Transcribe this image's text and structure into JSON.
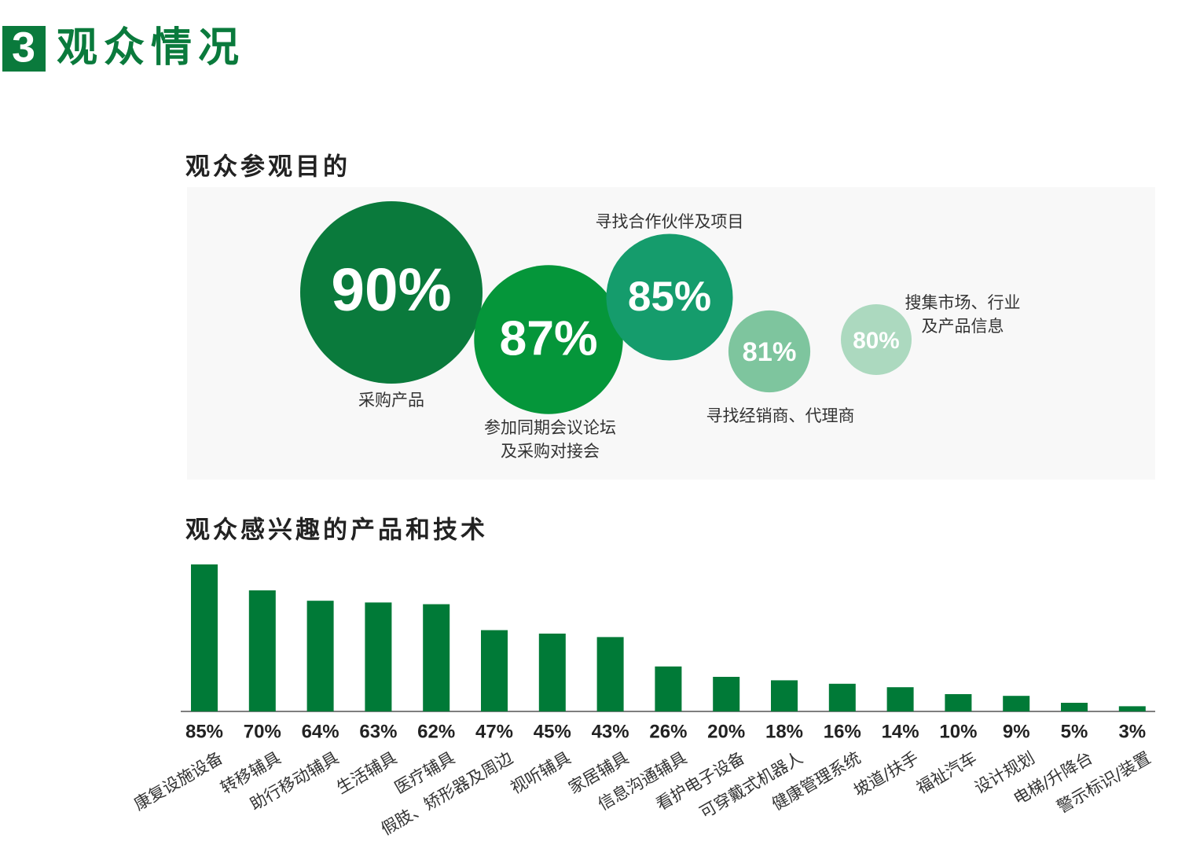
{
  "header": {
    "number": "3",
    "title": "观众情况"
  },
  "chart_data": [
    {
      "type": "bubble",
      "title": "观众参观目的",
      "categories": [
        [
          "采购产品"
        ],
        [
          "参加同期会议论坛",
          "及采购对接会"
        ],
        [
          "寻找合作伙伴及项目"
        ],
        [
          "寻找经销商、代理商"
        ],
        [
          "搜集市场、行业",
          "及产品信息"
        ]
      ],
      "values": [
        90,
        87,
        85,
        81,
        80
      ],
      "value_labels": [
        "90%",
        "87%",
        "85%",
        "81%",
        "80%"
      ],
      "colors": [
        "#0a7a3c",
        "#05963a",
        "#159c6c",
        "#7ec59e",
        "#acd9bf"
      ]
    },
    {
      "type": "bar",
      "title": "观众感兴趣的产品和技术",
      "categories": [
        "康复设施设备",
        "转移辅具",
        "助行移动辅具",
        "生活辅具",
        "医疗辅具",
        "假肢、矫形器及周边",
        "视听辅具",
        "家居辅具",
        "信息沟通辅具",
        "看护电子设备",
        "可穿戴式机器人",
        "健康管理系统",
        "坡道/扶手",
        "福祉汽车",
        "设计规划",
        "电梯/升降台",
        "警示标识/装置"
      ],
      "values": [
        85,
        70,
        64,
        63,
        62,
        47,
        45,
        43,
        26,
        20,
        18,
        16,
        14,
        10,
        9,
        5,
        3
      ],
      "value_labels": [
        "85%",
        "70%",
        "64%",
        "63%",
        "62%",
        "47%",
        "45%",
        "43%",
        "26%",
        "20%",
        "18%",
        "16%",
        "14%",
        "10%",
        "9%",
        "5%",
        "3%"
      ],
      "color": "#007a37"
    }
  ]
}
